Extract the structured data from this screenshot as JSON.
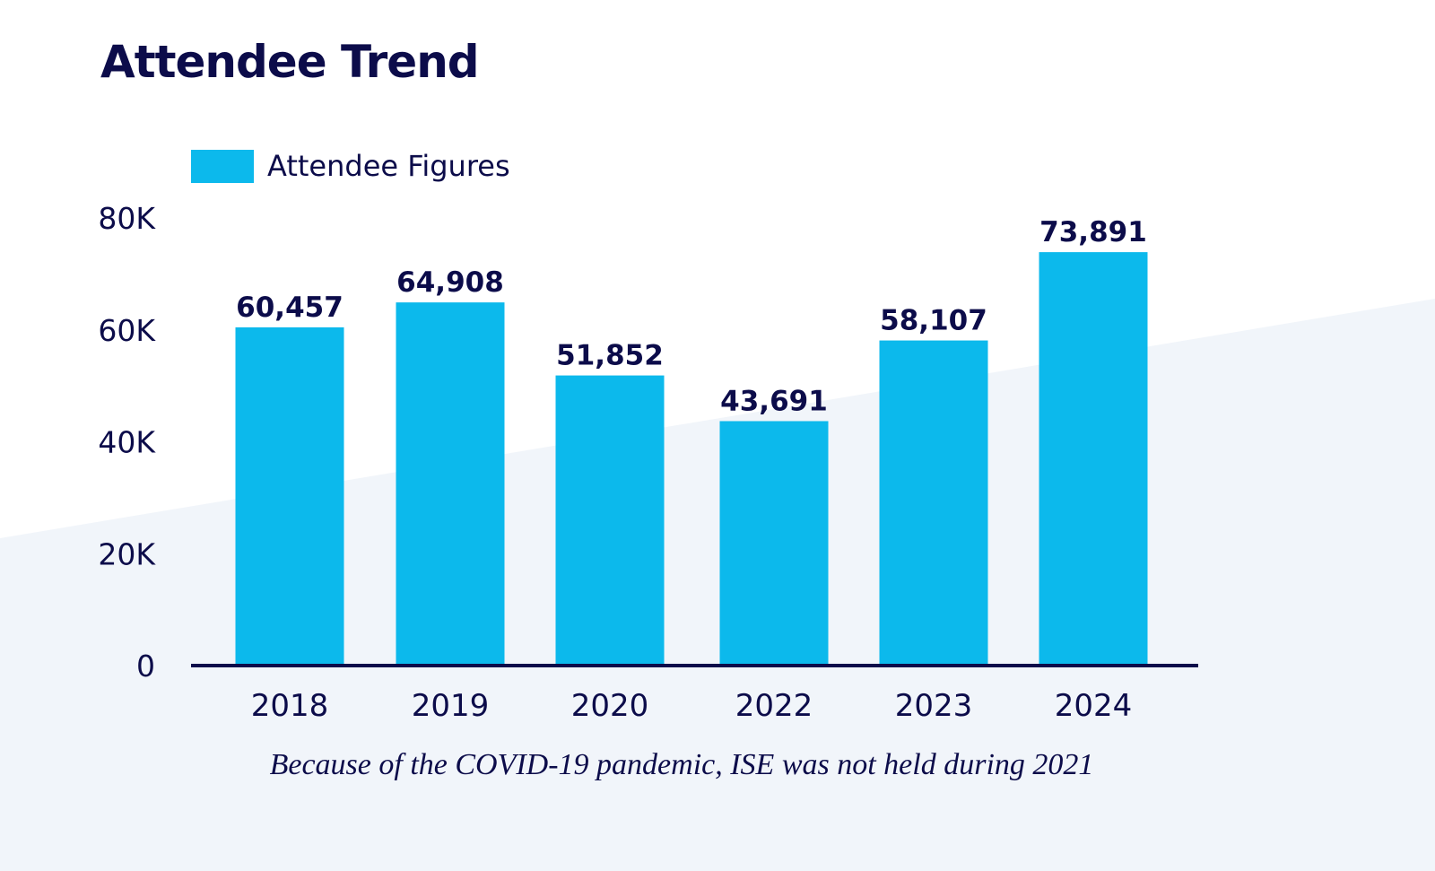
{
  "colors": {
    "bar": "#0cb9ec",
    "text": "#0c0c4a",
    "axis": "#0c0c4a",
    "background": "#ffffff",
    "background_band": "#f1f5fa"
  },
  "chart_data": {
    "type": "bar",
    "title": "Attendee Trend",
    "xlabel": "",
    "ylabel": "",
    "categories": [
      "2018",
      "2019",
      "2020",
      "2022",
      "2023",
      "2024"
    ],
    "series": [
      {
        "name": "Attendee Figures",
        "values": [
          60457,
          64908,
          51852,
          43691,
          58107,
          73891
        ]
      }
    ],
    "data_labels": [
      "60,457",
      "64,908",
      "51,852",
      "43,691",
      "58,107",
      "73,891"
    ],
    "ylim": [
      0,
      80000
    ],
    "yticks": [
      0,
      20000,
      40000,
      60000,
      80000
    ],
    "ytick_labels": [
      "0",
      "20K",
      "40K",
      "60K",
      "80K"
    ],
    "grid": false,
    "legend": {
      "position": "top-left",
      "entries": [
        "Attendee Figures"
      ]
    },
    "annotation": "Because of the COVID-19 pandemic, ISE was not held during 2021"
  }
}
